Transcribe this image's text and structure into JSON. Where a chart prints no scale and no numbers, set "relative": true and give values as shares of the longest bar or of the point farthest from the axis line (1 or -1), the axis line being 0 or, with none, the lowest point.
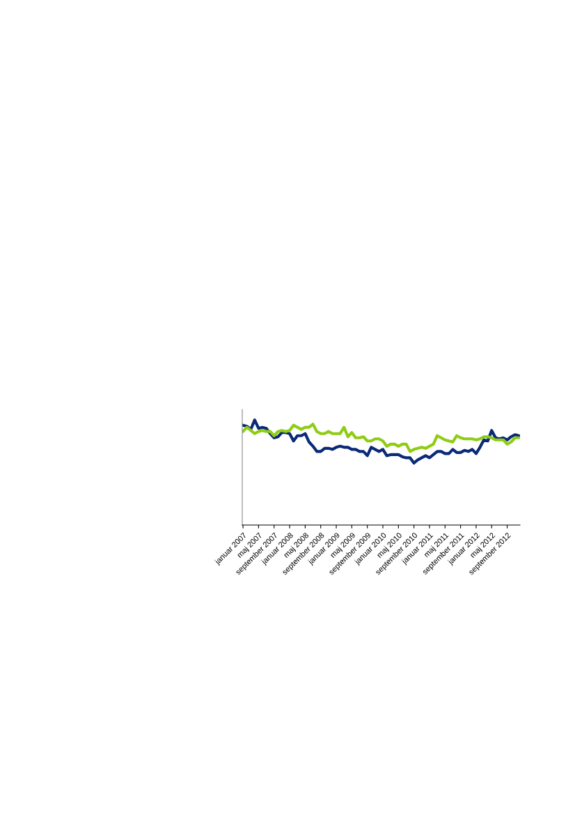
{
  "chart_data": {
    "type": "line",
    "relative": true,
    "categories": [
      "januar 2007",
      null,
      null,
      null,
      "maj 2007",
      null,
      null,
      null,
      "september 2007",
      null,
      null,
      null,
      "januar 2008",
      null,
      null,
      null,
      "maj 2008",
      null,
      null,
      null,
      "september 2008",
      null,
      null,
      null,
      "januar 2009",
      null,
      null,
      null,
      "maj 2009",
      null,
      null,
      null,
      "september 2009",
      null,
      null,
      null,
      "januar 2010",
      null,
      null,
      null,
      "maj 2010",
      null,
      null,
      null,
      "september 2010",
      null,
      null,
      null,
      "januar 2011",
      null,
      null,
      null,
      "maj 2011",
      null,
      null,
      null,
      "september 2011",
      null,
      null,
      null,
      "januar 2012",
      null,
      null,
      null,
      "maj 2012",
      null,
      null,
      null,
      "september 2012",
      null,
      null,
      null
    ],
    "series": [
      {
        "color": "#0a2a78",
        "values": [
          0.95,
          0.94,
          0.91,
          1,
          0.92,
          0.93,
          0.92,
          0.87,
          0.83,
          0.84,
          0.88,
          0.88,
          0.87,
          0.8,
          0.85,
          0.85,
          0.87,
          0.79,
          0.75,
          0.7,
          0.7,
          0.73,
          0.73,
          0.72,
          0.74,
          0.75,
          0.74,
          0.74,
          0.72,
          0.72,
          0.7,
          0.7,
          0.66,
          0.74,
          0.72,
          0.7,
          0.72,
          0.66,
          0.67,
          0.67,
          0.67,
          0.65,
          0.64,
          0.64,
          0.59,
          0.62,
          0.64,
          0.66,
          0.64,
          0.67,
          0.7,
          0.7,
          0.68,
          0.68,
          0.72,
          0.69,
          0.69,
          0.71,
          0.7,
          0.72,
          0.68,
          0.74,
          0.81,
          0.8,
          0.9,
          0.83,
          0.82,
          0.83,
          0.81,
          0.84,
          0.86,
          0.85
        ]
      },
      {
        "color": "#8fcc14",
        "values": [
          0.89,
          0.93,
          0.9,
          0.87,
          0.89,
          0.9,
          0.89,
          0.89,
          0.85,
          0.89,
          0.9,
          0.89,
          0.9,
          0.95,
          0.93,
          0.91,
          0.93,
          0.93,
          0.96,
          0.89,
          0.87,
          0.87,
          0.89,
          0.87,
          0.87,
          0.87,
          0.93,
          0.84,
          0.88,
          0.83,
          0.83,
          0.84,
          0.8,
          0.8,
          0.82,
          0.82,
          0.8,
          0.75,
          0.77,
          0.77,
          0.75,
          0.77,
          0.77,
          0.7,
          0.72,
          0.73,
          0.74,
          0.73,
          0.75,
          0.77,
          0.85,
          0.83,
          0.81,
          0.8,
          0.79,
          0.85,
          0.83,
          0.82,
          0.82,
          0.82,
          0.81,
          0.82,
          0.84,
          0.84,
          0.83,
          0.81,
          0.81,
          0.81,
          0.77,
          0.79,
          0.83,
          0.83
        ]
      }
    ]
  }
}
